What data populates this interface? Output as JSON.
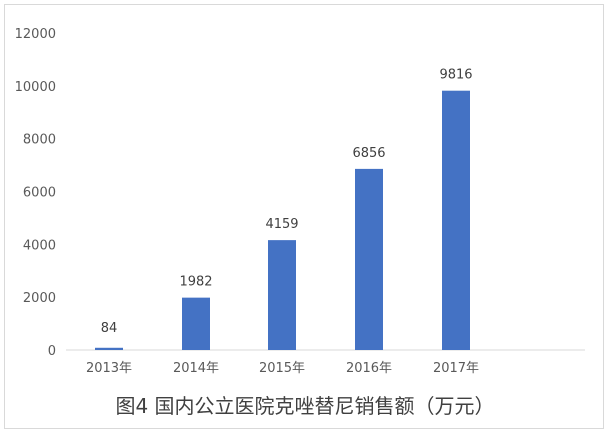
{
  "chart_data": {
    "type": "bar",
    "title": "图4 国内公立医院克唑替尼销售额（万元）",
    "xlabel": "",
    "ylabel": "",
    "categories": [
      "2013年",
      "2014年",
      "2015年",
      "2016年",
      "2017年"
    ],
    "values": [
      84,
      1982,
      4159,
      6856,
      9816
    ],
    "data_labels": [
      "84",
      "1982",
      "4159",
      "6856",
      "9816"
    ],
    "ylim": [
      0,
      12000
    ],
    "yticks": [
      "0",
      "2000",
      "4000",
      "6000",
      "8000",
      "10000",
      "12000"
    ],
    "grid": false,
    "legend": "none",
    "bar_color": "#4472c4"
  }
}
